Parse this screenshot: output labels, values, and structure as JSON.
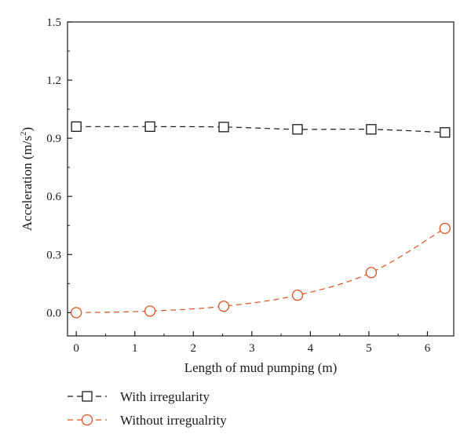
{
  "chart_data": {
    "type": "line",
    "xlabel": "Length of mud pumping (m)",
    "ylabel": "Acceleration (m/s",
    "ylabel_sup": "2",
    "ylabel_close": ")",
    "xlim": [
      -0.15,
      6.45
    ],
    "ylim": [
      -0.12,
      1.5
    ],
    "xticks": [
      0,
      1,
      2,
      3,
      4,
      5,
      6
    ],
    "xtick_labels": [
      "0",
      "1",
      "2",
      "3",
      "4",
      "5",
      "6"
    ],
    "yticks": [
      0.0,
      0.3,
      0.6,
      0.9,
      1.2,
      1.5
    ],
    "ytick_labels": [
      "0.0",
      "0.3",
      "0.6",
      "0.9",
      "1.2",
      "1.5"
    ],
    "grid": false,
    "legend_position": "bottom-left, below plot",
    "series": [
      {
        "name": "With irregularity",
        "marker": "square",
        "color": "#1a1a1a",
        "x": [
          0,
          1.26,
          2.52,
          3.78,
          5.04,
          6.3
        ],
        "y": [
          0.96,
          0.96,
          0.958,
          0.946,
          0.946,
          0.93
        ]
      },
      {
        "name": "Without irregualrity",
        "marker": "circle",
        "color": "#d9531e",
        "x": [
          0,
          1.26,
          2.52,
          3.78,
          5.04,
          6.3
        ],
        "y": [
          0.0,
          0.008,
          0.033,
          0.09,
          0.207,
          0.435
        ]
      }
    ]
  }
}
